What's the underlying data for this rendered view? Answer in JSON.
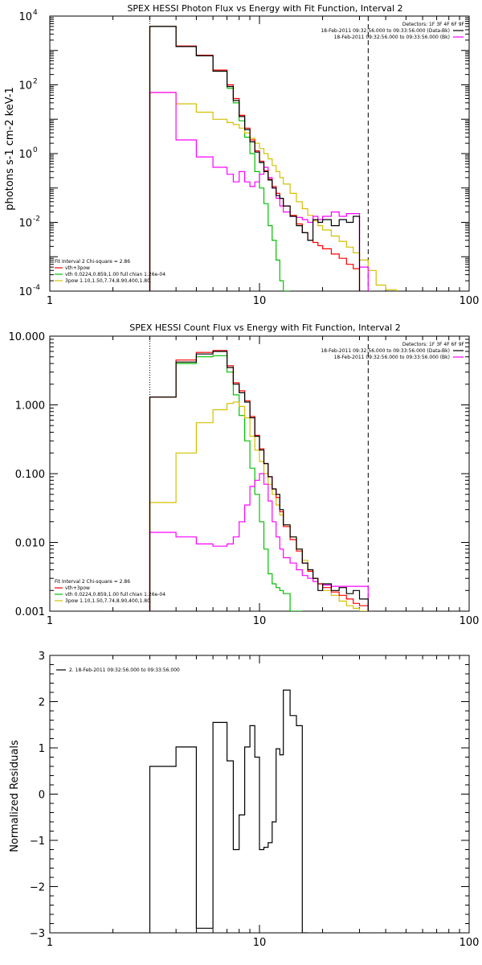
{
  "chart_data": [
    {
      "type": "line",
      "title": "SPEX HESSI Photon Flux vs Energy with Fit Function, Interval 2",
      "xlabel": "",
      "ylabel": "photons s-1 cm-2 keV-1",
      "xscale": "log",
      "yscale": "log",
      "xlim": [
        1,
        100
      ],
      "ylim": [
        0.0001,
        10000
      ],
      "x_ticks": [
        {
          "v": 1,
          "label": "1"
        },
        {
          "v": 10,
          "label": "10"
        },
        {
          "v": 100,
          "label": "100"
        }
      ],
      "y_ticks": [
        {
          "v": 0.0001,
          "b": "10",
          "e": "-4"
        },
        {
          "v": 0.01,
          "b": "10",
          "e": "-2"
        },
        {
          "v": 1,
          "b": "10",
          "e": "0"
        },
        {
          "v": 100,
          "b": "10",
          "e": "2"
        },
        {
          "v": 10000,
          "b": "10",
          "e": "4"
        }
      ],
      "grid": false,
      "legend_position": "top-right",
      "legend": {
        "title": "Detectors: 1F 3F 4F 6F 9F",
        "entries": [
          {
            "label": "18-Feb-2011 09:32:56.000 to 09:33:56.000 (Data-Bk)",
            "color": "#000000"
          },
          {
            "label": "18-Feb-2011 09:32:56.000 to 09:33:56.000 (Bk)",
            "color": "#ff00ff"
          }
        ]
      },
      "fit_legend": {
        "title": "Fit Interval 2   Chi-square = 2.86",
        "entries": [
          {
            "label": "vth+3pow",
            "color": "#ff0000"
          },
          {
            "label": "vth 0.0224,0.859,1.00  full chian 1.26e-04",
            "color": "#00c000"
          },
          {
            "label": "3pow 1.10,1.50,7.74,8.90,400,1.80",
            "color": "#d4c000"
          }
        ]
      },
      "vlines": [
        {
          "x": 3.0,
          "color": "#000000",
          "dash": "1,2"
        },
        {
          "x": 33.0,
          "color": "#000000",
          "dash": "6,4"
        }
      ],
      "edges": [
        3,
        3.5,
        4,
        4.5,
        5,
        5.5,
        6,
        6.5,
        7,
        7.5,
        8,
        8.5,
        9,
        9.5,
        10,
        10.5,
        11,
        11.5,
        12,
        12.5,
        13,
        14,
        15,
        16,
        17,
        18,
        19,
        20,
        22,
        24,
        26,
        28,
        30,
        33,
        36,
        40,
        45
      ],
      "series": [
        {
          "color": "#000000",
          "values": [
            5000,
            5000,
            1300,
            1300,
            700,
            700,
            250,
            250,
            90,
            35,
            12,
            5,
            2.2,
            1.1,
            0.55,
            0.3,
            0.17,
            0.1,
            0.06,
            0.05,
            0.03,
            0.015,
            0.008,
            0.005,
            0.003,
            0.012,
            0.01,
            0.012,
            0.008,
            0.012,
            0.01,
            0.015
          ]
        },
        {
          "color": "#ff0000",
          "values": [
            5000,
            5000,
            1350,
            1350,
            730,
            730,
            270,
            270,
            100,
            40,
            13,
            5.5,
            2.5,
            1.2,
            0.6,
            0.32,
            0.18,
            0.11,
            0.07,
            0.05,
            0.03,
            0.016,
            0.009,
            0.005,
            0.003,
            0.0026,
            0.0021,
            0.0017,
            0.0012,
            0.0009,
            0.0006,
            0.00045
          ]
        },
        {
          "color": "#00c000",
          "values": [
            5000,
            5000,
            1300,
            1300,
            700,
            700,
            250,
            250,
            80,
            30,
            9,
            3,
            1,
            0.3,
            0.1,
            0.035,
            0.008,
            0.003,
            0.0008,
            0.0002,
            0.0001
          ]
        },
        {
          "color": "#d4c000",
          "values": [
            60,
            60,
            28,
            28,
            16,
            16,
            10,
            10,
            8,
            7,
            5.5,
            4,
            2.8,
            2,
            1.4,
            1,
            0.7,
            0.45,
            0.3,
            0.2,
            0.13,
            0.07,
            0.04,
            0.025,
            0.016,
            0.011,
            0.008,
            0.006,
            0.004,
            0.0028,
            0.0019,
            0.0013,
            0.0008,
            0.0004,
            0.00015,
            0.00011
          ]
        },
        {
          "color": "#ff00ff",
          "values": [
            60,
            60,
            2.5,
            2.5,
            0.8,
            0.8,
            0.4,
            0.4,
            0.25,
            0.15,
            0.3,
            0.15,
            0.11,
            0.15,
            0.25,
            0.4,
            0.2,
            0.1,
            0.05,
            0.03,
            0.02,
            0.015,
            0.014,
            0.012,
            0.01,
            0.015,
            0.012,
            0.015,
            0.02,
            0.015,
            0.018,
            0.018,
            0.0005
          ]
        }
      ]
    },
    {
      "type": "line",
      "title": "SPEX HESSI Count Flux vs Energy with Fit Function, Interval 2",
      "xlabel": "",
      "ylabel": "",
      "xscale": "log",
      "yscale": "log",
      "xlim": [
        1,
        100
      ],
      "ylim": [
        0.001,
        10
      ],
      "x_ticks": [
        {
          "v": 1,
          "label": "1"
        },
        {
          "v": 10,
          "label": "10"
        },
        {
          "v": 100,
          "label": "100"
        }
      ],
      "y_ticks": [
        {
          "v": 0.001,
          "label": "0.001"
        },
        {
          "v": 0.01,
          "label": "0.010"
        },
        {
          "v": 0.1,
          "label": "0.100"
        },
        {
          "v": 1,
          "label": "1.000"
        },
        {
          "v": 10,
          "label": "10.000"
        }
      ],
      "grid": false,
      "legend_position": "top-right",
      "legend": {
        "title": "Detectors: 1F 3F 4F 6F 9F",
        "entries": [
          {
            "label": "18-Feb-2011 09:32:56.000 to 09:33:56.000 (Data-Bk)",
            "color": "#000000"
          },
          {
            "label": "18-Feb-2011 09:32:56.000 to 09:33:56.000 (Bk)",
            "color": "#ff00ff"
          }
        ]
      },
      "fit_legend": {
        "title": "Fit Interval 2   Chi-square = 2.86",
        "entries": [
          {
            "label": "vth+3pow",
            "color": "#ff0000"
          },
          {
            "label": "vth 0.0224,0.859,1.00  full chian 1.26e-04",
            "color": "#00c000"
          },
          {
            "label": "3pow 1.10,1.50,7.74,8.90,400,1.80",
            "color": "#d4c000"
          }
        ]
      },
      "vlines": [
        {
          "x": 3.0,
          "color": "#000000",
          "dash": "1,2"
        },
        {
          "x": 33.0,
          "color": "#000000",
          "dash": "6,4"
        }
      ],
      "edges": [
        3,
        3.5,
        4,
        5,
        6,
        7,
        7.5,
        8,
        8.5,
        9,
        9.5,
        10,
        10.5,
        11,
        11.5,
        12,
        12.5,
        13,
        14,
        15,
        16,
        17,
        18,
        19,
        20,
        22,
        24,
        26,
        28,
        30,
        33
      ],
      "series": [
        {
          "color": "#000000",
          "values": [
            1.3,
            1.3,
            4.2,
            5.5,
            6.0,
            3.5,
            2.0,
            1.5,
            1.1,
            0.65,
            0.35,
            0.22,
            0.14,
            0.09,
            0.06,
            0.05,
            0.03,
            0.018,
            0.012,
            0.008,
            0.005,
            0.004,
            0.003,
            0.002,
            0.0025,
            0.002,
            0.0022,
            0.0018,
            0.002,
            0.0015
          ]
        },
        {
          "color": "#ff0000",
          "values": [
            1.3,
            1.3,
            4.5,
            5.8,
            6.2,
            3.7,
            2.1,
            1.6,
            1.15,
            0.68,
            0.36,
            0.23,
            0.14,
            0.09,
            0.06,
            0.045,
            0.028,
            0.017,
            0.011,
            0.0075,
            0.005,
            0.0038,
            0.003,
            0.0025,
            0.0022,
            0.0019,
            0.0017,
            0.0015,
            0.0013,
            0.0012
          ]
        },
        {
          "color": "#00c000",
          "values": [
            1.3,
            1.3,
            4.0,
            5.0,
            5.2,
            3.0,
            1.4,
            0.7,
            0.3,
            0.12,
            0.05,
            0.02,
            0.008,
            0.0035,
            0.0025,
            0.0022,
            0.002,
            0.0018,
            0.0009,
            0.0005
          ]
        },
        {
          "color": "#d4c000",
          "values": [
            0.038,
            0.038,
            0.2,
            0.55,
            0.85,
            1.05,
            1.1,
            0.95,
            0.65,
            0.35,
            0.22,
            0.15,
            0.1,
            0.07,
            0.05,
            0.035,
            0.025,
            0.018,
            0.012,
            0.008,
            0.0055,
            0.004,
            0.003,
            0.0025,
            0.002,
            0.0017,
            0.0014,
            0.0012,
            0.0011,
            0.001
          ]
        },
        {
          "color": "#ff00ff",
          "values": [
            0.014,
            0.014,
            0.012,
            0.0095,
            0.0088,
            0.0095,
            0.012,
            0.02,
            0.035,
            0.065,
            0.08,
            0.1,
            0.07,
            0.04,
            0.02,
            0.012,
            0.008,
            0.006,
            0.005,
            0.004,
            0.0033,
            0.003,
            0.0027,
            0.0025,
            0.0024,
            0.0023,
            0.0023,
            0.0023,
            0.0023,
            0.0023
          ]
        }
      ]
    },
    {
      "type": "line",
      "title": "",
      "xlabel": "",
      "ylabel": "Normalized Residuals",
      "xscale": "log",
      "yscale": "linear",
      "xlim": [
        1,
        100
      ],
      "ylim": [
        -3,
        3
      ],
      "x_ticks": [
        {
          "v": 1,
          "label": "1"
        },
        {
          "v": 10,
          "label": "10"
        },
        {
          "v": 100,
          "label": "100"
        }
      ],
      "y_ticks": [
        {
          "v": -3,
          "label": "−3"
        },
        {
          "v": -2,
          "label": "−2"
        },
        {
          "v": -1,
          "label": "−1"
        },
        {
          "v": 0,
          "label": "0"
        },
        {
          "v": 1,
          "label": "1"
        },
        {
          "v": 2,
          "label": "2"
        },
        {
          "v": 3,
          "label": "3"
        }
      ],
      "grid": false,
      "legend_position": "top-left",
      "legend": {
        "title": "",
        "entries": [
          {
            "label": "2. 18-Feb-2011 09:32:56.000 to 09:33:56.000",
            "color": "#000000"
          }
        ]
      },
      "edges": [
        3,
        3.5,
        4,
        4.5,
        5,
        5.5,
        6,
        6.5,
        7,
        7.5,
        8,
        8.5,
        9,
        9.5,
        10,
        10.5,
        11,
        11.5,
        12,
        12.5,
        13,
        14,
        15,
        16,
        17,
        18,
        19,
        20,
        22,
        24,
        26,
        28,
        30,
        33
      ],
      "series": [
        {
          "color": "#000000",
          "values": [
            0.6,
            0.6,
            1.02,
            1.02,
            -2.9,
            -2.9,
            1.55,
            1.55,
            0.72,
            -1.2,
            -0.45,
            1.02,
            1.48,
            0.8,
            -1.2,
            -1.15,
            -1.05,
            -0.6,
            0.98,
            0.85,
            2.25,
            1.7,
            1.48,
            -3.0
          ]
        }
      ]
    }
  ]
}
